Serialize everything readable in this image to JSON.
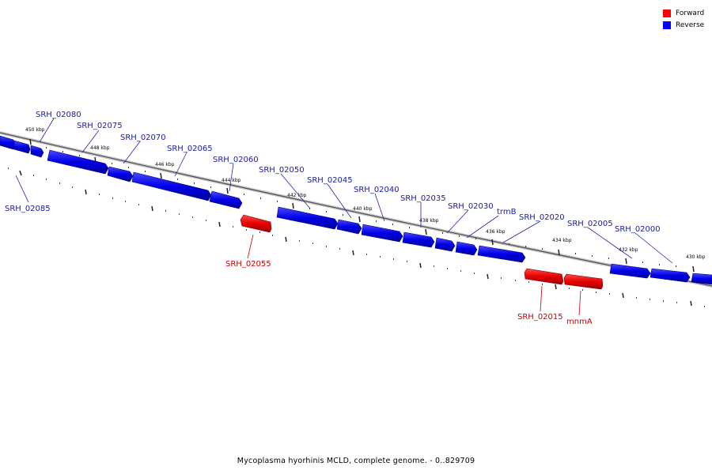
{
  "colors": {
    "forward": "#ff0000",
    "reverse": "#0000ff",
    "forward_label": "#cc0000",
    "reverse_label": "#1a1aa0"
  },
  "legend": [
    {
      "label": "Forward",
      "color": "#ff0000"
    },
    {
      "label": "Reverse",
      "color": "#0000ff"
    }
  ],
  "footer": "Mycoplasma hyorhinis MCLD, complete genome. - 0..829709",
  "tick_labels": [
    "450 kbp",
    "448 kbp",
    "446 kbp",
    "444 kbp",
    "442 kbp",
    "440 kbp",
    "438 kbp",
    "436 kbp",
    "434 kbp",
    "432 kbp",
    "430 kbp"
  ],
  "features": [
    {
      "name": "SRH_02085",
      "strand": "reverse"
    },
    {
      "name": "SRH_02080",
      "strand": "reverse"
    },
    {
      "name": "SRH_02075",
      "strand": "reverse"
    },
    {
      "name": "SRH_02070",
      "strand": "reverse"
    },
    {
      "name": "SRH_02065",
      "strand": "reverse"
    },
    {
      "name": "SRH_02060",
      "strand": "reverse"
    },
    {
      "name": "SRH_02055",
      "strand": "forward"
    },
    {
      "name": "SRH_02050",
      "strand": "reverse"
    },
    {
      "name": "SRH_02045",
      "strand": "reverse"
    },
    {
      "name": "SRH_02040",
      "strand": "reverse"
    },
    {
      "name": "SRH_02035",
      "strand": "reverse"
    },
    {
      "name": "SRH_02030",
      "strand": "reverse"
    },
    {
      "name": "trmB",
      "strand": "reverse"
    },
    {
      "name": "SRH_02020",
      "strand": "reverse"
    },
    {
      "name": "SRH_02015",
      "strand": "forward"
    },
    {
      "name": "mnmA",
      "strand": "forward"
    },
    {
      "name": "SRH_02005",
      "strand": "reverse"
    },
    {
      "name": "SRH_02000",
      "strand": "reverse"
    }
  ]
}
